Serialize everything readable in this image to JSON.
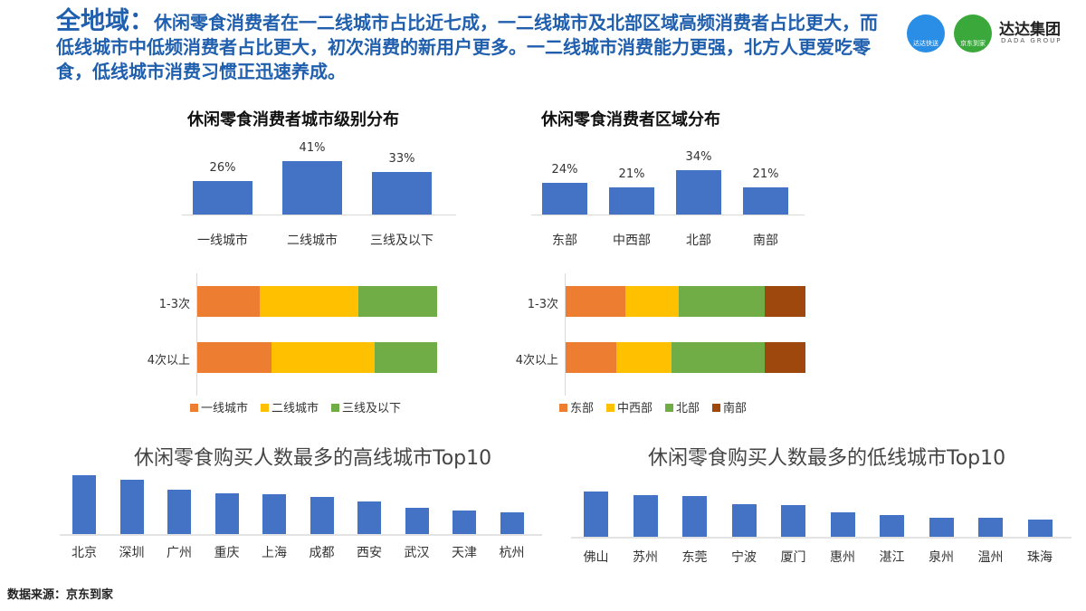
{
  "header": {
    "lead": "全地域：",
    "text": "休闲零食消费者在一二线城市占比近七成，一二线城市及北部区域高频消费者占比更大，而低线城市中低频消费者占比更大，初次消费的新用户更多。一二线城市消费能力更强，北方人更爱吃零食，低线城市消费习惯正迅速养成。"
  },
  "logos": {
    "dada_label": "达达快送",
    "jddj_label": "京东到家",
    "group_name": "达达集团",
    "group_en": "DADA GROUP"
  },
  "source": "数据来源：京东到家",
  "colors": {
    "blue": "#4472c4",
    "orange": "#ed7d31",
    "yellow": "#ffc000",
    "green": "#70ad47",
    "brown": "#9e480e",
    "title": "#1f5fae"
  },
  "chart_data": [
    {
      "type": "bar",
      "title": "休闲零食消费者城市级别分布",
      "categories": [
        "一线城市",
        "二线城市",
        "三线及以下"
      ],
      "values": [
        26,
        41,
        33
      ],
      "data_labels": [
        "26%",
        "41%",
        "33%"
      ]
    },
    {
      "type": "bar",
      "title": "休闲零食消费者区域分布",
      "categories": [
        "东部",
        "中西部",
        "北部",
        "南部"
      ],
      "values": [
        24,
        21,
        34,
        21
      ],
      "data_labels": [
        "24%",
        "21%",
        "34%",
        "21%"
      ]
    },
    {
      "type": "bar",
      "stacked": true,
      "orientation": "horizontal",
      "categories": [
        "1-3次",
        "4次以上"
      ],
      "legend": "bottom",
      "series": [
        {
          "name": "一线城市",
          "values": [
            26,
            31
          ]
        },
        {
          "name": "二线城市",
          "values": [
            41,
            43
          ]
        },
        {
          "name": "三线及以下",
          "values": [
            33,
            26
          ]
        }
      ]
    },
    {
      "type": "bar",
      "stacked": true,
      "orientation": "horizontal",
      "categories": [
        "1-3次",
        "4次以上"
      ],
      "legend": "bottom",
      "series": [
        {
          "name": "东部",
          "values": [
            25,
            21
          ]
        },
        {
          "name": "中西部",
          "values": [
            22,
            23
          ]
        },
        {
          "name": "北部",
          "values": [
            36,
            39
          ]
        },
        {
          "name": "南部",
          "values": [
            17,
            17
          ]
        }
      ]
    },
    {
      "type": "bar",
      "title": "休闲零食购买人数最多的高线城市Top10",
      "categories": [
        "北京",
        "深圳",
        "广州",
        "重庆",
        "上海",
        "成都",
        "西安",
        "武汉",
        "天津",
        "杭州"
      ],
      "values": [
        65,
        60,
        49,
        45,
        44,
        41,
        36,
        29,
        26,
        24
      ]
    },
    {
      "type": "bar",
      "title": "休闲零食购买人数最多的低线城市Top10",
      "categories": [
        "佛山",
        "苏州",
        "东莞",
        "宁波",
        "厦门",
        "惠州",
        "湛江",
        "泉州",
        "温州",
        "珠海"
      ],
      "values": [
        50,
        46,
        45,
        36,
        35,
        27,
        24,
        21,
        21,
        19
      ]
    }
  ]
}
